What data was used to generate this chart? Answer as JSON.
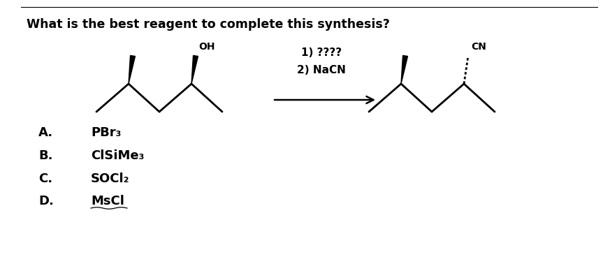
{
  "title": "What is the best reagent to complete this synthesis?",
  "reaction_label_1": "1) ????",
  "reaction_label_2": "2) NaCN",
  "oh_label": "OH",
  "cn_label": "CN",
  "choices": [
    {
      "letter": "A.",
      "text": "PBr₃"
    },
    {
      "letter": "B.",
      "text": "ClSiMe₃"
    },
    {
      "letter": "C.",
      "text": "SOCl₂"
    },
    {
      "letter": "D.",
      "text": "MsCl"
    }
  ],
  "bg_color": "#ffffff",
  "text_color": "#000000",
  "line_color": "#000000",
  "font_size_title": 12.5,
  "font_size_rxn": 11,
  "font_size_label": 10,
  "font_size_choice": 13
}
